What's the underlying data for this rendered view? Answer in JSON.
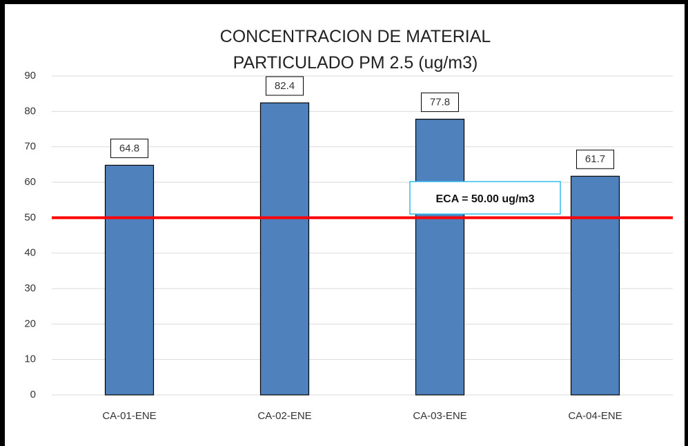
{
  "chart_data": {
    "type": "bar",
    "title": "CONCENTRACION DE MATERIAL PARTICULADO PM 2.5 (ug/m3)",
    "categories": [
      "CA-01-ENE",
      "CA-02-ENE",
      "CA-03-ENE",
      "CA-04-ENE"
    ],
    "values": [
      64.8,
      82.4,
      77.8,
      61.7
    ],
    "color": "#4f81bd",
    "ylim": [
      0,
      90
    ],
    "yticks": [
      0,
      10,
      20,
      30,
      40,
      50,
      60,
      70,
      80,
      90
    ],
    "grid": true,
    "reference_line": {
      "value": 50,
      "label": "ECA = 50.00 ug/m3",
      "color": "#ff0000"
    }
  }
}
